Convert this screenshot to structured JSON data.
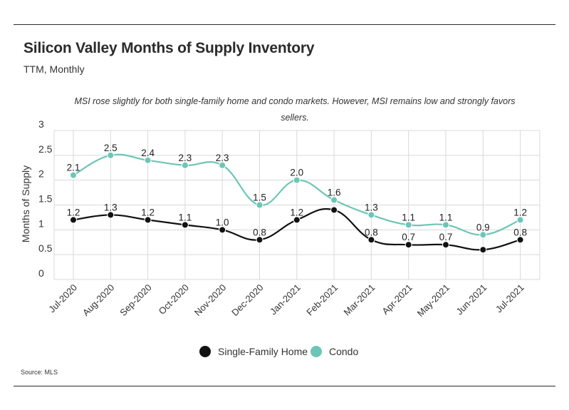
{
  "title": "Silicon Valley Months of Supply Inventory",
  "subtitle": "TTM, Monthly",
  "annotation": "MSI rose slightly for both single-family home and condo markets. However, MSI remains low and strongly favors sellers.",
  "source": "Source:  MLS",
  "chart_data": {
    "type": "line",
    "categories": [
      "Jul-2020",
      "Aug-2020",
      "Sep-2020",
      "Oct-2020",
      "Nov-2020",
      "Dec-2020",
      "Jan-2021",
      "Feb-2021",
      "Mar-2021",
      "Apr-2021",
      "May-2021",
      "Jun-2021",
      "Jul-2021"
    ],
    "series": [
      {
        "name": "Single-Family Home",
        "color": "#111111",
        "values": [
          1.2,
          1.3,
          1.2,
          1.1,
          1.0,
          0.8,
          1.2,
          1.4,
          0.8,
          0.7,
          0.7,
          0.6,
          0.8
        ],
        "labels": [
          "1.2",
          "1.3",
          "1.2",
          "1.1",
          "1.0",
          "0.8",
          "1.2",
          "",
          "0.8",
          "0.7",
          "0.7",
          "",
          "0.8"
        ]
      },
      {
        "name": "Condo",
        "color": "#6cc6b6",
        "values": [
          2.1,
          2.5,
          2.4,
          2.3,
          2.3,
          1.5,
          2.0,
          1.6,
          1.3,
          1.1,
          1.1,
          0.9,
          1.2
        ],
        "labels": [
          "2.1",
          "2.5",
          "2.4",
          "2.3",
          "2.3",
          "1.5",
          "2.0",
          "1.6",
          "1.3",
          "1.1",
          "1.1",
          "0.9",
          "1.2"
        ]
      }
    ],
    "ylabel": "Months of Supply",
    "ylim": [
      0,
      3
    ],
    "yticks": [
      "0",
      "0.5",
      "1",
      "1.5",
      "2",
      "2.5",
      "3"
    ],
    "grid": true,
    "legend": "bottom-center"
  }
}
